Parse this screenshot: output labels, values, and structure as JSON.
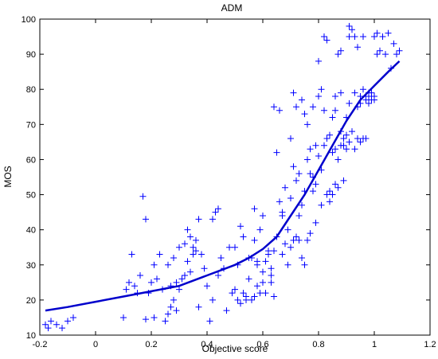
{
  "chart_data": {
    "type": "scatter",
    "title": "ADM",
    "xlabel": "Objective score",
    "ylabel": "MOS",
    "xlim": [
      -0.2,
      1.2
    ],
    "ylim": [
      10,
      100
    ],
    "xticks": [
      -0.2,
      0,
      0.2,
      0.4,
      0.6,
      0.8,
      1,
      1.2
    ],
    "xtick_labels": [
      "-0.2",
      "0",
      "0.2",
      "0.4",
      "0.6",
      "0.8",
      "1",
      "1.2"
    ],
    "yticks": [
      10,
      20,
      30,
      40,
      50,
      60,
      70,
      80,
      90,
      100
    ],
    "ytick_labels": [
      "10",
      "20",
      "30",
      "40",
      "50",
      "60",
      "70",
      "80",
      "90",
      "100"
    ],
    "grid": false,
    "legend": "none",
    "marker": "plus",
    "color": "#0000ff",
    "points": [
      [
        -0.18,
        13
      ],
      [
        -0.17,
        12
      ],
      [
        -0.16,
        14
      ],
      [
        -0.14,
        13
      ],
      [
        -0.12,
        12
      ],
      [
        -0.1,
        14
      ],
      [
        -0.08,
        15
      ],
      [
        0.1,
        15
      ],
      [
        0.11,
        23
      ],
      [
        0.13,
        33
      ],
      [
        0.14,
        24
      ],
      [
        0.15,
        22
      ],
      [
        0.16,
        27
      ],
      [
        0.17,
        49.5
      ],
      [
        0.18,
        43
      ],
      [
        0.18,
        14.5
      ],
      [
        0.19,
        22
      ],
      [
        0.2,
        25
      ],
      [
        0.21,
        15
      ],
      [
        0.21,
        30
      ],
      [
        0.22,
        26
      ],
      [
        0.23,
        33
      ],
      [
        0.24,
        23
      ],
      [
        0.25,
        14
      ],
      [
        0.26,
        16
      ],
      [
        0.26,
        30
      ],
      [
        0.27,
        18
      ],
      [
        0.27,
        24
      ],
      [
        0.28,
        20
      ],
      [
        0.28,
        32
      ],
      [
        0.29,
        17
      ],
      [
        0.3,
        23
      ],
      [
        0.3,
        35
      ],
      [
        0.31,
        26
      ],
      [
        0.32,
        36
      ],
      [
        0.32,
        27
      ],
      [
        0.33,
        31
      ],
      [
        0.33,
        40
      ],
      [
        0.34,
        28
      ],
      [
        0.34,
        38
      ],
      [
        0.35,
        33
      ],
      [
        0.36,
        34
      ],
      [
        0.36,
        37
      ],
      [
        0.37,
        18
      ],
      [
        0.37,
        43
      ],
      [
        0.38,
        33
      ],
      [
        0.39,
        29
      ],
      [
        0.4,
        24
      ],
      [
        0.41,
        14
      ],
      [
        0.42,
        20
      ],
      [
        0.43,
        45
      ],
      [
        0.44,
        27
      ],
      [
        0.44,
        46
      ],
      [
        0.45,
        32
      ],
      [
        0.46,
        29
      ],
      [
        0.47,
        17
      ],
      [
        0.48,
        35
      ],
      [
        0.49,
        22
      ],
      [
        0.5,
        23
      ],
      [
        0.5,
        35
      ],
      [
        0.51,
        20
      ],
      [
        0.51,
        30
      ],
      [
        0.52,
        41
      ],
      [
        0.52,
        19
      ],
      [
        0.53,
        22
      ],
      [
        0.53,
        38
      ],
      [
        0.54,
        21
      ],
      [
        0.54,
        20
      ],
      [
        0.55,
        26
      ],
      [
        0.55,
        32
      ],
      [
        0.56,
        20
      ],
      [
        0.56,
        32
      ],
      [
        0.57,
        21
      ],
      [
        0.57,
        37
      ],
      [
        0.57,
        46
      ],
      [
        0.58,
        30
      ],
      [
        0.58,
        31
      ],
      [
        0.58,
        24
      ],
      [
        0.59,
        22
      ],
      [
        0.59,
        40
      ],
      [
        0.6,
        25
      ],
      [
        0.6,
        28
      ],
      [
        0.6,
        44
      ],
      [
        0.61,
        31
      ],
      [
        0.61,
        22
      ],
      [
        0.62,
        33
      ],
      [
        0.62,
        34
      ],
      [
        0.63,
        25
      ],
      [
        0.63,
        27
      ],
      [
        0.63,
        29
      ],
      [
        0.64,
        34
      ],
      [
        0.64,
        21
      ],
      [
        0.64,
        75
      ],
      [
        0.65,
        38
      ],
      [
        0.65,
        62
      ],
      [
        0.66,
        74
      ],
      [
        0.66,
        48
      ],
      [
        0.67,
        33
      ],
      [
        0.67,
        44
      ],
      [
        0.67,
        45
      ],
      [
        0.68,
        36
      ],
      [
        0.68,
        52
      ],
      [
        0.69,
        30
      ],
      [
        0.69,
        40
      ],
      [
        0.7,
        35
      ],
      [
        0.7,
        66
      ],
      [
        0.7,
        49
      ],
      [
        0.71,
        37
      ],
      [
        0.71,
        58
      ],
      [
        0.71,
        79
      ],
      [
        0.72,
        38
      ],
      [
        0.72,
        54
      ],
      [
        0.72,
        75
      ],
      [
        0.73,
        44
      ],
      [
        0.73,
        37
      ],
      [
        0.73,
        56
      ],
      [
        0.74,
        77
      ],
      [
        0.74,
        32
      ],
      [
        0.74,
        47
      ],
      [
        0.75,
        30
      ],
      [
        0.75,
        73
      ],
      [
        0.75,
        51
      ],
      [
        0.76,
        60
      ],
      [
        0.76,
        70
      ],
      [
        0.76,
        37
      ],
      [
        0.77,
        39
      ],
      [
        0.77,
        63
      ],
      [
        0.77,
        56
      ],
      [
        0.78,
        55
      ],
      [
        0.78,
        51
      ],
      [
        0.78,
        75
      ],
      [
        0.79,
        42
      ],
      [
        0.79,
        53
      ],
      [
        0.79,
        64
      ],
      [
        0.8,
        88
      ],
      [
        0.8,
        78
      ],
      [
        0.8,
        61
      ],
      [
        0.81,
        47
      ],
      [
        0.81,
        80
      ],
      [
        0.81,
        57
      ],
      [
        0.82,
        64
      ],
      [
        0.82,
        74
      ],
      [
        0.82,
        95
      ],
      [
        0.83,
        50
      ],
      [
        0.83,
        66
      ],
      [
        0.83,
        94
      ],
      [
        0.84,
        48
      ],
      [
        0.84,
        51
      ],
      [
        0.84,
        67
      ],
      [
        0.85,
        50
      ],
      [
        0.85,
        62
      ],
      [
        0.85,
        72
      ],
      [
        0.85,
        50
      ],
      [
        0.86,
        53
      ],
      [
        0.86,
        63
      ],
      [
        0.86,
        74
      ],
      [
        0.86,
        78
      ],
      [
        0.87,
        60
      ],
      [
        0.87,
        90
      ],
      [
        0.87,
        52
      ],
      [
        0.88,
        64
      ],
      [
        0.88,
        68
      ],
      [
        0.88,
        91
      ],
      [
        0.88,
        79
      ],
      [
        0.89,
        64
      ],
      [
        0.89,
        66
      ],
      [
        0.89,
        54
      ],
      [
        0.9,
        67
      ],
      [
        0.9,
        72
      ],
      [
        0.9,
        63
      ],
      [
        0.91,
        65
      ],
      [
        0.91,
        76
      ],
      [
        0.91,
        98
      ],
      [
        0.91,
        95
      ],
      [
        0.92,
        97
      ],
      [
        0.92,
        68
      ],
      [
        0.93,
        95
      ],
      [
        0.93,
        79
      ],
      [
        0.93,
        63
      ],
      [
        0.94,
        66
      ],
      [
        0.94,
        75
      ],
      [
        0.94,
        92
      ],
      [
        0.95,
        78
      ],
      [
        0.95,
        76
      ],
      [
        0.95,
        65
      ],
      [
        0.96,
        95
      ],
      [
        0.96,
        66
      ],
      [
        0.96,
        80
      ],
      [
        0.97,
        77
      ],
      [
        0.97,
        78
      ],
      [
        0.97,
        66
      ],
      [
        0.98,
        79
      ],
      [
        0.98,
        76
      ],
      [
        0.98,
        78
      ],
      [
        0.99,
        77
      ],
      [
        0.99,
        78
      ],
      [
        0.99,
        79
      ],
      [
        1,
        78
      ],
      [
        1,
        77
      ],
      [
        1,
        78
      ],
      [
        1,
        95
      ],
      [
        1.01,
        96
      ],
      [
        1.01,
        90
      ],
      [
        1.02,
        91
      ],
      [
        1.03,
        95
      ],
      [
        1.04,
        90
      ],
      [
        1.05,
        96
      ],
      [
        1.06,
        86
      ],
      [
        1.07,
        93
      ],
      [
        1.08,
        90
      ],
      [
        1.09,
        91
      ],
      [
        0.42,
        43
      ],
      [
        0.12,
        25
      ],
      [
        0.29,
        25
      ],
      [
        0.35,
        35
      ]
    ],
    "fit_line": [
      [
        -0.18,
        17
      ],
      [
        -0.1,
        18
      ],
      [
        0,
        19.5
      ],
      [
        0.1,
        21
      ],
      [
        0.2,
        22.5
      ],
      [
        0.3,
        24
      ],
      [
        0.4,
        27
      ],
      [
        0.45,
        28.5
      ],
      [
        0.5,
        30
      ],
      [
        0.55,
        32
      ],
      [
        0.6,
        34.5
      ],
      [
        0.65,
        38
      ],
      [
        0.7,
        44
      ],
      [
        0.75,
        50
      ],
      [
        0.8,
        57
      ],
      [
        0.85,
        64
      ],
      [
        0.9,
        71
      ],
      [
        0.95,
        77
      ],
      [
        1,
        81
      ],
      [
        1.05,
        85
      ],
      [
        1.09,
        88
      ]
    ]
  }
}
